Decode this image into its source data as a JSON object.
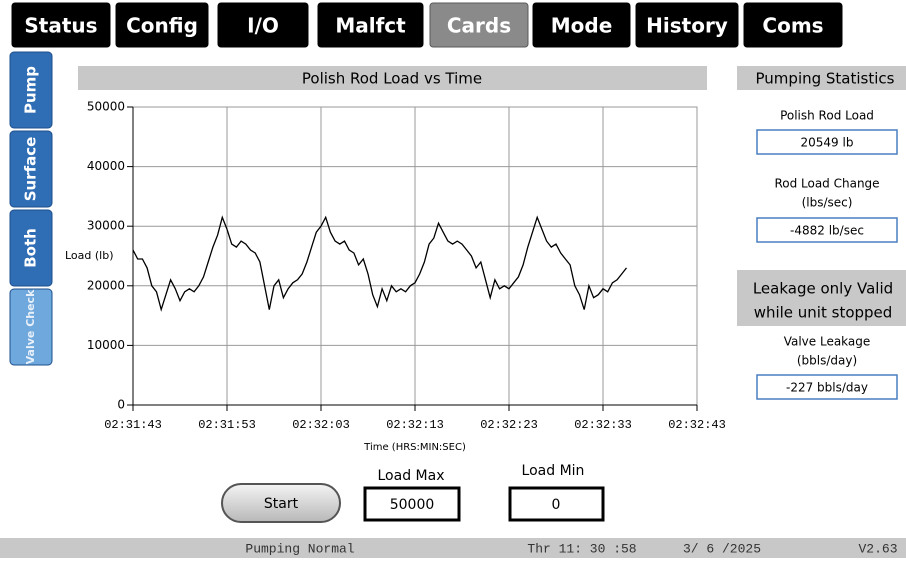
{
  "tabs": [
    "Status",
    "Config",
    "I/O",
    "Malfct",
    "Cards",
    "Mode",
    "History",
    "Coms"
  ],
  "active_tab": "Cards",
  "side_tabs": [
    "Pump",
    "Surface",
    "Both",
    "Valve Check"
  ],
  "active_side_tab": "Valve Check",
  "chart_data": {
    "type": "line",
    "title": "Polish Rod Load vs Time",
    "y_label": "Load (lb)",
    "x_label": "Time (HRS:MIN:SEC)",
    "color": "#000000",
    "grid": true,
    "xlim": [
      0,
      60
    ],
    "xticks": [
      {
        "value": 0,
        "label": "02:31:43"
      },
      {
        "value": 10,
        "label": "02:31:53"
      },
      {
        "value": 20,
        "label": "02:32:03"
      },
      {
        "value": 30,
        "label": "02:32:13"
      },
      {
        "value": 40,
        "label": "02:32:23"
      },
      {
        "value": 50,
        "label": "02:32:33"
      },
      {
        "value": 60,
        "label": "02:32:43"
      }
    ],
    "ylim": [
      0,
      50000
    ],
    "yticks": [
      0,
      10000,
      20000,
      30000,
      40000,
      50000
    ],
    "x": [
      0,
      0.5,
      1,
      1.5,
      2,
      2.5,
      3,
      3.5,
      4,
      4.5,
      5,
      5.5,
      6,
      6.5,
      7,
      7.5,
      8,
      8.5,
      9,
      9.5,
      10,
      10.5,
      11,
      11.5,
      12,
      12.5,
      13,
      13.5,
      14,
      14.5,
      15,
      15.5,
      16,
      16.5,
      17,
      17.5,
      18,
      18.5,
      19,
      19.5,
      20,
      20.5,
      21,
      21.5,
      22,
      22.5,
      23,
      23.5,
      24,
      24.5,
      25,
      25.5,
      26,
      26.5,
      27,
      27.5,
      28,
      28.5,
      29,
      29.5,
      30,
      30.5,
      31,
      31.5,
      32,
      32.5,
      33,
      33.5,
      34,
      34.5,
      35,
      35.5,
      36,
      36.5,
      37,
      37.5,
      38,
      38.5,
      39,
      39.5,
      40,
      40.5,
      41,
      41.5,
      42,
      42.5,
      43,
      43.5,
      44,
      44.5,
      45,
      45.5,
      46,
      46.5,
      47,
      47.5,
      48,
      48.5,
      49,
      49.5,
      50,
      50.5,
      51,
      51.5,
      52,
      52.5
    ],
    "values": [
      26000,
      24500,
      24500,
      23000,
      20000,
      19000,
      16000,
      18500,
      21000,
      19500,
      17500,
      19000,
      19500,
      19000,
      20000,
      21500,
      24000,
      26500,
      28500,
      31500,
      29500,
      27000,
      26500,
      27500,
      27000,
      26000,
      25500,
      24000,
      20000,
      16000,
      20000,
      21000,
      18000,
      19500,
      20500,
      21000,
      22000,
      24000,
      26500,
      29000,
      30000,
      31500,
      29000,
      27500,
      27000,
      27500,
      26000,
      25500,
      23500,
      24500,
      22000,
      18500,
      16500,
      19500,
      17500,
      20000,
      19000,
      19500,
      19000,
      20000,
      20500,
      22000,
      24000,
      27000,
      28000,
      30500,
      29000,
      27500,
      27000,
      27500,
      27000,
      26000,
      25000,
      23000,
      24000,
      21000,
      18000,
      21000,
      19500,
      20000,
      19500,
      20500,
      21500,
      23500,
      26500,
      29000,
      31500,
      29500,
      27500,
      26500,
      27000,
      25500,
      24500,
      23500,
      20000,
      18500,
      16000,
      20000,
      18000,
      18500,
      19500,
      19000,
      20500,
      21000,
      22000,
      23000
    ]
  },
  "stats": {
    "title": "Pumping Statistics",
    "polish_rod_load": {
      "label": "Polish Rod Load",
      "value": "20549 lb"
    },
    "rod_load_change": {
      "label": "Rod Load Change",
      "unit": "(lbs/sec)",
      "value": "-4882 lb/sec"
    },
    "leakage_note": [
      "Leakage only Valid",
      "while unit stopped"
    ],
    "valve_leakage": {
      "label": "Valve Leakage",
      "unit": "(bbls/day)",
      "value": "-227 bbls/day"
    }
  },
  "controls": {
    "start": "Start",
    "load_max": {
      "label": "Load Max",
      "value": "50000"
    },
    "load_min": {
      "label": "Load Min",
      "value": "0"
    }
  },
  "status_bar": {
    "state": "Pumping Normal",
    "time": "Thr 11: 30 :58",
    "date": "3/ 6 /2025",
    "version": "V2.63"
  }
}
